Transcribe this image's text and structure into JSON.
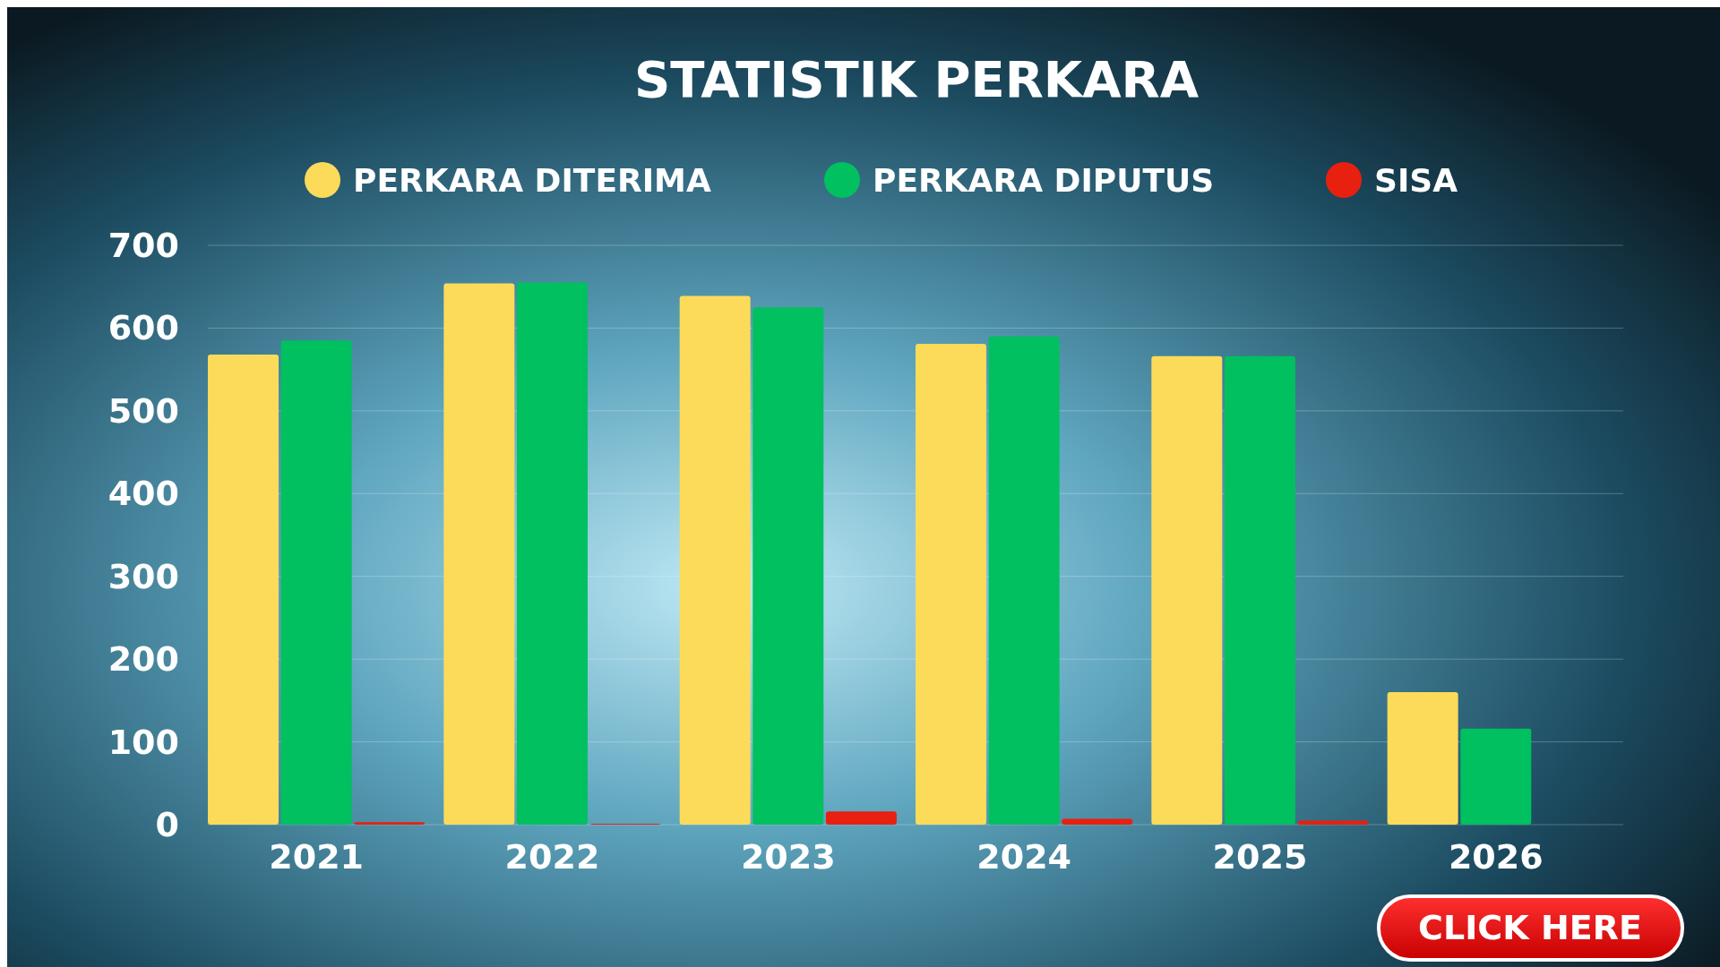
{
  "chart_data": {
    "type": "bar",
    "title": "STATISTIK PERKARA",
    "categories": [
      "2021",
      "2022",
      "2023",
      "2024",
      "2025",
      "2026"
    ],
    "series": [
      {
        "name": "PERKARA DITERIMA",
        "color": "#fcdb5a",
        "values": [
          568,
          654,
          639,
          581,
          566,
          160
        ]
      },
      {
        "name": "PERKARA DIPUTUS",
        "color": "#00c060",
        "values": [
          585,
          655,
          625,
          590,
          566,
          116
        ]
      },
      {
        "name": "SISA",
        "color": "#e82010",
        "values": [
          3,
          1,
          16,
          7,
          5,
          0
        ]
      }
    ],
    "ylim": [
      0,
      700
    ],
    "yticks": [
      0,
      100,
      200,
      300,
      400,
      500,
      600,
      700
    ],
    "grid": "y",
    "legend": "top",
    "annotations": [
      "CLICK HERE"
    ]
  }
}
